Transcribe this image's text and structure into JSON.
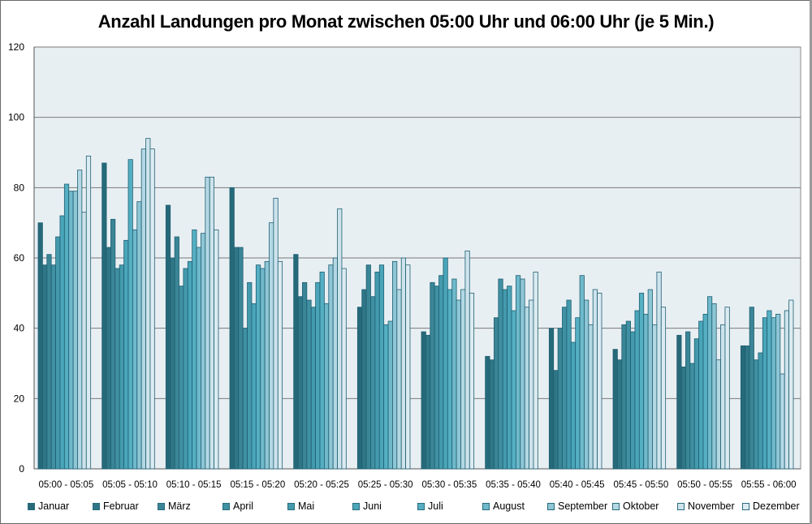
{
  "chart_data": {
    "type": "bar",
    "title": "Anzahl Landungen pro Monat zwischen 05:00 Uhr und 06:00 Uhr (je 5 Min.)",
    "xlabel": "",
    "ylabel": "",
    "ylim": [
      0,
      120
    ],
    "yticks": [
      0,
      20,
      40,
      60,
      80,
      100,
      120
    ],
    "grid": true,
    "legend_position": "bottom",
    "categories": [
      "05:00 - 05:05",
      "05:05 - 05:10",
      "05:10 - 05:15",
      "05:15 - 05:20",
      "05:20 - 05:25",
      "05:25 - 05:30",
      "05:30 - 05:35",
      "05:35 - 05:40",
      "05:40 - 05:45",
      "05:45 - 05:50",
      "05:50 - 05:55",
      "05:55 - 06:00"
    ],
    "series": [
      {
        "name": "Januar",
        "color": "#266a7a",
        "values": [
          70,
          87,
          75,
          80,
          61,
          46,
          39,
          32,
          40,
          34,
          38,
          35
        ]
      },
      {
        "name": "Februar",
        "color": "#2f7686",
        "values": [
          58,
          63,
          60,
          63,
          49,
          51,
          38,
          31,
          28,
          31,
          29,
          35
        ]
      },
      {
        "name": "März",
        "color": "#3a8596",
        "values": [
          61,
          71,
          66,
          63,
          53,
          58,
          53,
          43,
          40,
          41,
          39,
          46
        ]
      },
      {
        "name": "April",
        "color": "#3f90a2",
        "values": [
          58,
          57,
          52,
          40,
          48,
          49,
          52,
          54,
          46,
          42,
          30,
          31
        ]
      },
      {
        "name": "Mai",
        "color": "#449aad",
        "values": [
          66,
          58,
          57,
          53,
          46,
          56,
          55,
          51,
          48,
          39,
          37,
          33
        ]
      },
      {
        "name": "Juni",
        "color": "#4aa5b9",
        "values": [
          72,
          65,
          59,
          47,
          53,
          58,
          60,
          52,
          36,
          45,
          42,
          43
        ]
      },
      {
        "name": "Juli",
        "color": "#55afc3",
        "values": [
          81,
          88,
          68,
          58,
          56,
          41,
          51,
          45,
          43,
          50,
          44,
          45
        ]
      },
      {
        "name": "August",
        "color": "#6fb9cb",
        "values": [
          79,
          68,
          63,
          57,
          47,
          42,
          54,
          55,
          55,
          44,
          49,
          43
        ]
      },
      {
        "name": "September",
        "color": "#8ec6d5",
        "values": [
          79,
          76,
          67,
          59,
          58,
          59,
          48,
          54,
          48,
          51,
          47,
          44
        ]
      },
      {
        "name": "Oktober",
        "color": "#b3d8e3",
        "values": [
          85,
          91,
          83,
          70,
          60,
          51,
          51,
          46,
          41,
          41,
          31,
          27
        ]
      },
      {
        "name": "November",
        "color": "#cde3ec",
        "values": [
          73,
          94,
          83,
          77,
          74,
          60,
          62,
          48,
          51,
          56,
          41,
          45
        ]
      },
      {
        "name": "Dezember",
        "color": "#dcebf1",
        "values": [
          89,
          91,
          68,
          59,
          57,
          58,
          50,
          56,
          50,
          46,
          46,
          48
        ]
      }
    ]
  },
  "colors": {
    "plot_background": "#e8eff3",
    "gridline": "#7a7a7a",
    "bar_outline": "#1f5f72"
  }
}
